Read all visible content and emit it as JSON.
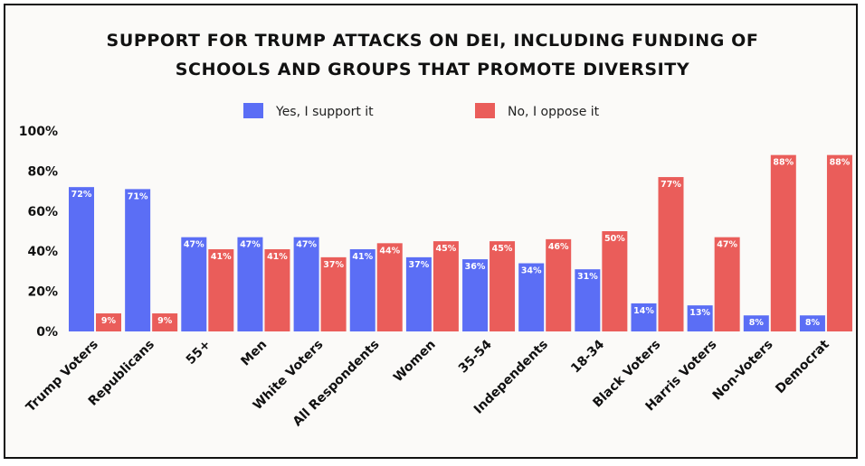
{
  "chart_data": {
    "type": "bar",
    "title_lines": [
      "SUPPORT FOR TRUMP ATTACKS ON DEI, INCLUDING FUNDING OF",
      "SCHOOLS AND GROUPS THAT PROMOTE DIVERSITY"
    ],
    "categories": [
      "Trump Voters",
      "Republicans",
      "55+",
      "Men",
      "White Voters",
      "All Respondents",
      "Women",
      "35-54",
      "Independents",
      "18-34",
      "Black Voters",
      "Harris Voters",
      "Non-Voters",
      "Democrat"
    ],
    "series": [
      {
        "name": "Yes, I support it",
        "color": "#5b6ef5",
        "values": [
          72,
          71,
          47,
          47,
          47,
          41,
          37,
          36,
          34,
          31,
          14,
          13,
          8,
          8
        ]
      },
      {
        "name": "No, I oppose it",
        "color": "#ea5d5a",
        "values": [
          9,
          9,
          41,
          41,
          37,
          44,
          45,
          45,
          46,
          50,
          77,
          47,
          88,
          88
        ]
      }
    ],
    "y_ticks": [
      0,
      20,
      40,
      60,
      80,
      100
    ],
    "ylim": [
      0,
      100
    ],
    "value_suffix": "%",
    "legend_position": "top-center",
    "grid": false
  }
}
